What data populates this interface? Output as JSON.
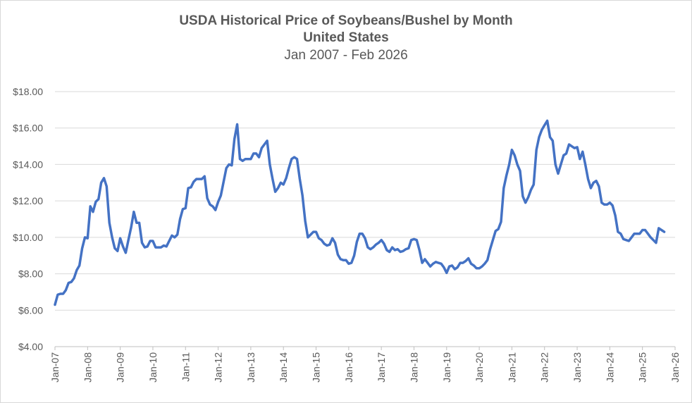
{
  "chart_data": {
    "type": "line",
    "title": "USDA Historical Price of Soybeans/Bushel by Month",
    "subtitle": "United States",
    "subtitle2": "Jan 2007 - Feb 2026",
    "xlabel": "",
    "ylabel": "",
    "ylim": [
      4,
      18
    ],
    "y_ticks": [
      "$4.00",
      "$6.00",
      "$8.00",
      "$10.00",
      "$12.00",
      "$14.00",
      "$16.00",
      "$18.00"
    ],
    "x_ticks": [
      "Jan-07",
      "Jan-08",
      "Jan-09",
      "Jan-10",
      "Jan-11",
      "Jan-12",
      "Jan-13",
      "Jan-14",
      "Jan-15",
      "Jan-16",
      "Jan-17",
      "Jan-18",
      "Jan-19",
      "Jan-20",
      "Jan-21",
      "Jan-22",
      "Jan-23",
      "Jan-24",
      "Jan-25",
      "Jan-26"
    ],
    "grid": true,
    "legend": "none",
    "line_color": "#4472c4",
    "series": [
      {
        "start": "2007-01",
        "values": [
          6.3,
          6.85,
          6.9,
          6.9,
          7.1,
          7.5,
          7.55,
          7.75,
          8.2,
          8.45,
          9.4,
          10.0,
          9.95,
          11.7,
          11.4,
          11.95,
          12.1,
          13.0,
          13.25,
          12.8,
          10.8,
          10.0,
          9.4,
          9.25,
          9.95,
          9.5,
          9.15,
          9.85,
          10.55,
          11.4,
          10.8,
          10.8,
          9.7,
          9.45,
          9.5,
          9.8,
          9.8,
          9.45,
          9.45,
          9.45,
          9.55,
          9.5,
          9.8,
          10.1,
          10.0,
          10.15,
          11.0,
          11.55,
          11.6,
          12.7,
          12.75,
          13.05,
          13.2,
          13.2,
          13.2,
          13.35,
          12.15,
          11.8,
          11.7,
          11.5,
          11.95,
          12.3,
          13.05,
          13.8,
          14.0,
          13.95,
          15.4,
          16.2,
          14.3,
          14.2,
          14.3,
          14.3,
          14.3,
          14.6,
          14.6,
          14.4,
          14.9,
          15.1,
          15.3,
          14.0,
          13.2,
          12.5,
          12.7,
          13.0,
          12.9,
          13.25,
          13.8,
          14.3,
          14.4,
          14.3,
          13.2,
          12.3,
          10.9,
          10.0,
          10.15,
          10.3,
          10.3,
          9.95,
          9.85,
          9.65,
          9.55,
          9.6,
          9.95,
          9.7,
          9.05,
          8.8,
          8.75,
          8.75,
          8.55,
          8.6,
          9.0,
          9.75,
          10.2,
          10.2,
          9.95,
          9.45,
          9.35,
          9.45,
          9.6,
          9.7,
          9.85,
          9.65,
          9.3,
          9.2,
          9.45,
          9.3,
          9.35,
          9.2,
          9.25,
          9.35,
          9.4,
          9.85,
          9.9,
          9.85,
          9.3,
          8.6,
          8.8,
          8.6,
          8.4,
          8.55,
          8.65,
          8.6,
          8.55,
          8.35,
          8.05,
          8.4,
          8.45,
          8.25,
          8.35,
          8.6,
          8.6,
          8.7,
          8.85,
          8.55,
          8.45,
          8.3,
          8.3,
          8.4,
          8.55,
          8.75,
          9.35,
          9.85,
          10.35,
          10.45,
          10.85,
          12.7,
          13.4,
          14.0,
          14.8,
          14.5,
          14.0,
          13.65,
          12.25,
          11.9,
          12.2,
          12.6,
          12.9,
          14.8,
          15.5,
          15.9,
          16.15,
          16.4,
          15.5,
          15.3,
          14.0,
          13.5,
          14.0,
          14.5,
          14.6,
          15.1,
          15.0,
          14.9,
          14.95,
          14.3,
          14.7,
          14.0,
          13.2,
          12.7,
          13.0,
          13.1,
          12.8,
          11.9,
          11.8,
          11.8,
          11.9,
          11.75,
          11.2,
          10.3,
          10.2,
          9.9,
          9.85,
          9.8,
          10.0,
          10.2,
          10.2,
          10.2,
          10.4,
          10.4,
          10.2,
          10.0,
          9.85,
          9.7,
          10.5,
          10.4,
          10.3
        ]
      }
    ]
  }
}
